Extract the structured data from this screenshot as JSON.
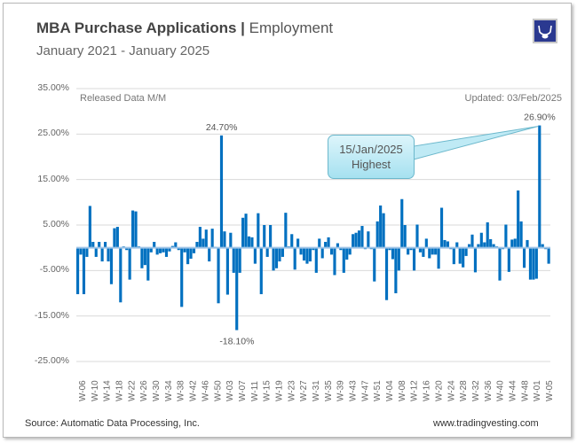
{
  "header": {
    "title_bold": "MBA Purchase Applications |",
    "title_rest": "Employment",
    "subtitle": "January 2021 - January 2025"
  },
  "notes": {
    "left": "Released Data M/M",
    "right": "Updated: 03/Feb/2025"
  },
  "footer": {
    "source": "Source: Automatic Data Processing, Inc.",
    "website": "www.tradingvesting.com"
  },
  "logo": {
    "icon": "bull-icon",
    "color": "#2b3990"
  },
  "callout": {
    "line1": "15/Jan/2025",
    "line2": "Highest",
    "fill": "#a6e1f0"
  },
  "chart_data": {
    "type": "bar",
    "title": "MBA Purchase Applications | Employment",
    "ylim": [
      -25,
      35
    ],
    "yticks": [
      "35.00%",
      "25.00%",
      "15.00%",
      "5.00%",
      "-5.00%",
      "-15.00%",
      "-25.00%"
    ],
    "ytick_values": [
      35,
      25,
      15,
      5,
      -5,
      -15,
      -25
    ],
    "grid": true,
    "bar_color": "#0070C0",
    "xtick_labels": [
      "W-06",
      "W-10",
      "W-14",
      "W-18",
      "W-22",
      "W-26",
      "W-30",
      "W-34",
      "W-38",
      "W-42",
      "W-46",
      "W-50",
      "W-03",
      "W-07",
      "W-11",
      "W-15",
      "W-19",
      "W-23",
      "W-27",
      "W-31",
      "W-35",
      "W-39",
      "W-43",
      "W-47",
      "W-51",
      "W-04",
      "W-08",
      "W-12",
      "W-16",
      "W-20",
      "W-24",
      "W-28",
      "W-32",
      "W-36",
      "W-40",
      "W-44",
      "W-48",
      "W-01",
      "W-05"
    ],
    "values": [
      -10.2,
      -1.5,
      -10.2,
      -2,
      9.2,
      1.3,
      -2,
      1.3,
      -3,
      1.3,
      -3,
      -8,
      4.3,
      4.6,
      -12,
      0.3,
      -0.5,
      -7,
      8.2,
      8,
      0.3,
      -4.5,
      -3.8,
      -7.2,
      -1,
      1.3,
      -1.5,
      -1.2,
      -1,
      -2,
      -0.8,
      0.4,
      1.2,
      -0.5,
      -13,
      -1,
      -3.6,
      -2.4,
      -1.2,
      1.3,
      4.6,
      2,
      4,
      -3,
      4.2,
      0.2,
      -12.2,
      24.7,
      3.6,
      -10.3,
      3.3,
      -5.5,
      -18.1,
      -5.5,
      6.6,
      7.5,
      2.5,
      2.3,
      -3.5,
      7.6,
      -10.2,
      5,
      -2,
      5,
      -5,
      -4.5,
      -3,
      -2,
      7.7,
      0.3,
      3,
      -4.8,
      2,
      -1.5,
      -2.8,
      -3.5,
      -3,
      -0.5,
      -5.5,
      2,
      -2.3,
      1.3,
      2.3,
      -1.5,
      -6,
      1,
      -0.5,
      -5.5,
      -2.6,
      -1.5,
      3,
      3.3,
      3.8,
      4.8,
      -0.3,
      3.6,
      -0.3,
      -7.4,
      5.8,
      9.3,
      7.6,
      -11.5,
      -0.5,
      -2.5,
      -10,
      -5,
      10.7,
      5,
      -1.5,
      -0.5,
      -5,
      5.1,
      -1,
      -2,
      2,
      -2.3,
      -1.5,
      -1.5,
      -4.6,
      8.8,
      1.7,
      1.4,
      -0.3,
      -3.6,
      1.2,
      -3.5,
      -4.3,
      -1.8,
      0.8,
      2.9,
      -5.4,
      0.8,
      3.3,
      1.2,
      5.6,
      1.9,
      0.8,
      0.3,
      -7.2,
      -0.3,
      5.1,
      -5.3,
      1.8,
      2,
      12.6,
      5.8,
      -4.4,
      1.7,
      -7,
      -7,
      -6.8,
      26.9,
      0.8,
      -0.3,
      -3.5
    ],
    "data_labels": [
      {
        "text": "24.70%",
        "value": 24.7
      },
      {
        "text": "-18.10%",
        "value": -18.1
      },
      {
        "text": "26.90%",
        "value": 26.9
      }
    ]
  }
}
